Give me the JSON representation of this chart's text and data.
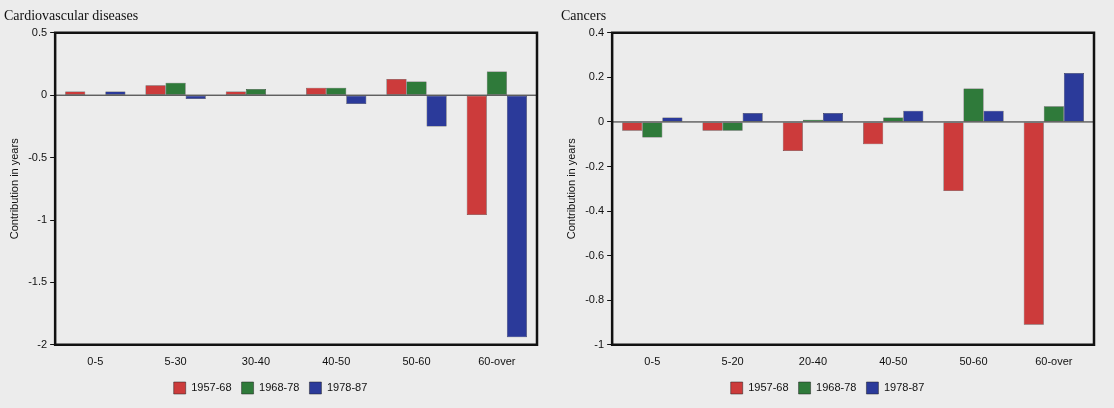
{
  "chart_data": [
    {
      "type": "bar",
      "title": "Cardiovascular diseases",
      "ylabel": "Contribution in years",
      "categories": [
        "0-5",
        "5-30",
        "30-40",
        "40-50",
        "50-60",
        "60-over"
      ],
      "series": [
        {
          "name": "1957-68",
          "color": "#cc3b3b",
          "values": [
            0.03,
            0.08,
            0.03,
            0.06,
            0.13,
            -0.96
          ]
        },
        {
          "name": "1968-78",
          "color": "#2f7a3a",
          "values": [
            0,
            0.1,
            0.05,
            0.06,
            0.11,
            0.19
          ]
        },
        {
          "name": "1978-87",
          "color": "#2b3a9a",
          "values": [
            0.03,
            -0.03,
            0,
            -0.07,
            -0.25,
            -1.94
          ]
        }
      ],
      "ylim": [
        -2,
        0.5
      ],
      "yticks": [
        -2,
        -1.5,
        -1,
        -0.5,
        0,
        0.5
      ],
      "ref_lines": [
        {
          "axis": "y",
          "value": 0
        }
      ],
      "grid": false,
      "legend": "bottom"
    },
    {
      "type": "bar",
      "title": "Cancers",
      "ylabel": "Contribution in years",
      "categories": [
        "0-5",
        "5-20",
        "20-40",
        "40-50",
        "50-60",
        "60-over"
      ],
      "series": [
        {
          "name": "1957-68",
          "color": "#cc3b3b",
          "values": [
            -0.04,
            -0.04,
            -0.13,
            -0.1,
            -0.31,
            -0.91
          ]
        },
        {
          "name": "1968-78",
          "color": "#2f7a3a",
          "values": [
            -0.07,
            -0.04,
            0.01,
            0.02,
            0.15,
            0.07
          ]
        },
        {
          "name": "1978-87",
          "color": "#2b3a9a",
          "values": [
            0.02,
            0.04,
            0.04,
            0.05,
            0.05,
            0.22
          ]
        }
      ],
      "ylim": [
        -1,
        0.4
      ],
      "yticks": [
        -1,
        -0.8,
        -0.6,
        -0.4,
        -0.2,
        0,
        0.2,
        0.4
      ],
      "ref_lines": [
        {
          "axis": "y",
          "value": 0
        }
      ],
      "grid": false,
      "legend": "bottom"
    }
  ]
}
